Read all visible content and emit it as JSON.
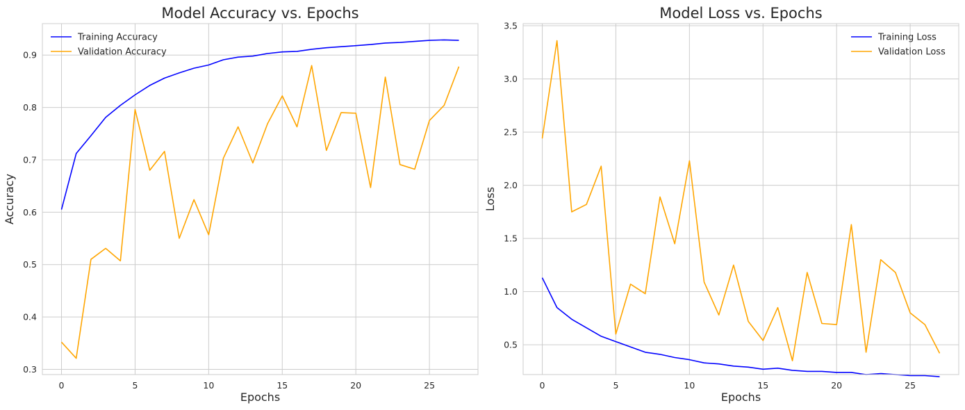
{
  "chart_data": [
    {
      "type": "line",
      "title": "Model Accuracy vs. Epochs",
      "xlabel": "Epochs",
      "ylabel": "Accuracy",
      "xlim": [
        -1.3,
        28.3
      ],
      "ylim": [
        0.29,
        0.96
      ],
      "xticks": [
        0,
        5,
        10,
        15,
        20,
        25
      ],
      "yticks": [
        0.3,
        0.4,
        0.5,
        0.6,
        0.7,
        0.8,
        0.9
      ],
      "xtick_labels": [
        "0",
        "5",
        "10",
        "15",
        "20",
        "25"
      ],
      "ytick_labels": [
        "0.3",
        "0.4",
        "0.5",
        "0.6",
        "0.7",
        "0.8",
        "0.9"
      ],
      "grid": true,
      "legend": "upper-left",
      "x": [
        0,
        1,
        2,
        3,
        4,
        5,
        6,
        7,
        8,
        9,
        10,
        11,
        12,
        13,
        14,
        15,
        16,
        17,
        18,
        19,
        20,
        21,
        22,
        23,
        24,
        25,
        26,
        27
      ],
      "series": [
        {
          "name": "Training Accuracy",
          "color": "#0000ff",
          "values": [
            0.605,
            0.712,
            0.746,
            0.781,
            0.804,
            0.824,
            0.842,
            0.856,
            0.866,
            0.875,
            0.881,
            0.891,
            0.896,
            0.898,
            0.903,
            0.906,
            0.907,
            0.911,
            0.914,
            0.916,
            0.918,
            0.92,
            0.923,
            0.924,
            0.926,
            0.928,
            0.929,
            0.928
          ]
        },
        {
          "name": "Validation Accuracy",
          "color": "#ffa500",
          "values": [
            0.352,
            0.321,
            0.51,
            0.531,
            0.507,
            0.796,
            0.68,
            0.716,
            0.55,
            0.624,
            0.557,
            0.703,
            0.763,
            0.694,
            0.769,
            0.822,
            0.763,
            0.88,
            0.718,
            0.79,
            0.789,
            0.647,
            0.858,
            0.691,
            0.682,
            0.775,
            0.804,
            0.878
          ]
        }
      ]
    },
    {
      "type": "line",
      "title": "Model Loss vs. Epochs",
      "xlabel": "Epochs",
      "ylabel": "Loss",
      "xlim": [
        -1.3,
        28.3
      ],
      "ylim": [
        0.22,
        3.52
      ],
      "xticks": [
        0,
        5,
        10,
        15,
        20,
        25
      ],
      "yticks": [
        0.5,
        1.0,
        1.5,
        2.0,
        2.5,
        3.0,
        3.5
      ],
      "xtick_labels": [
        "0",
        "5",
        "10",
        "15",
        "20",
        "25"
      ],
      "ytick_labels": [
        "0.5",
        "1.0",
        "1.5",
        "2.0",
        "2.5",
        "3.0",
        "3.5"
      ],
      "grid": true,
      "legend": "upper-right",
      "x": [
        0,
        1,
        2,
        3,
        4,
        5,
        6,
        7,
        8,
        9,
        10,
        11,
        12,
        13,
        14,
        15,
        16,
        17,
        18,
        19,
        20,
        21,
        22,
        23,
        24,
        25,
        26,
        27
      ],
      "series": [
        {
          "name": "Training Loss",
          "color": "#0000ff",
          "values": [
            1.13,
            0.85,
            0.74,
            0.66,
            0.58,
            0.53,
            0.48,
            0.43,
            0.41,
            0.38,
            0.36,
            0.33,
            0.32,
            0.3,
            0.29,
            0.27,
            0.28,
            0.26,
            0.25,
            0.25,
            0.24,
            0.24,
            0.22,
            0.23,
            0.22,
            0.21,
            0.21,
            0.2
          ]
        },
        {
          "name": "Validation Loss",
          "color": "#ffa500",
          "values": [
            2.44,
            3.36,
            1.75,
            1.82,
            2.18,
            0.6,
            1.07,
            0.98,
            1.89,
            1.45,
            2.23,
            1.09,
            0.78,
            1.25,
            0.72,
            0.54,
            0.85,
            0.35,
            1.18,
            0.7,
            0.69,
            1.63,
            0.43,
            1.3,
            1.18,
            0.8,
            0.69,
            0.42
          ]
        }
      ]
    }
  ]
}
